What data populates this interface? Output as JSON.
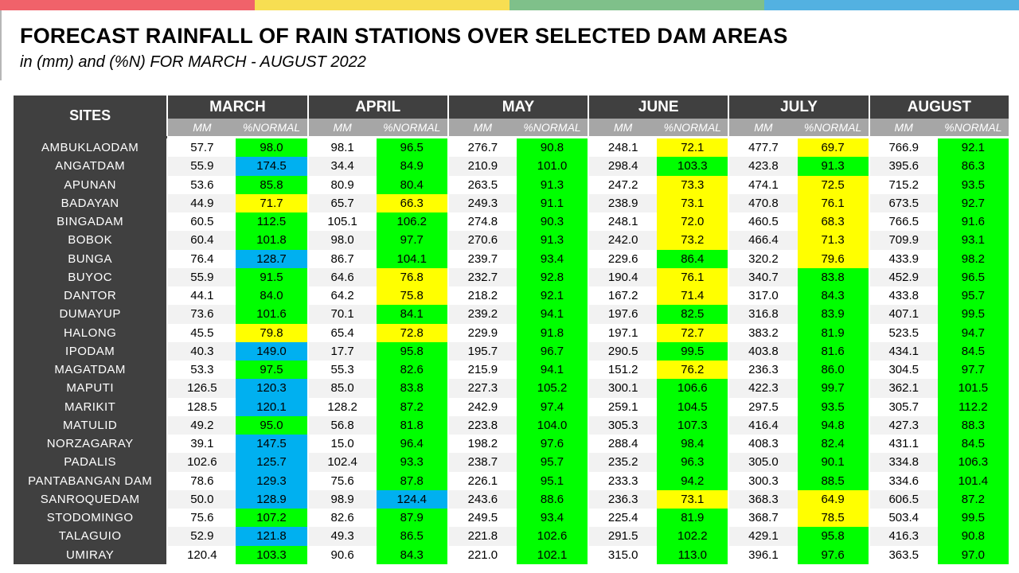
{
  "colors": {
    "top_bar": [
      "#f0626a",
      "#f7de52",
      "#7fc08a",
      "#53b1e1"
    ],
    "header_bg": "#404040",
    "subheader_bg": "#a6a6a6",
    "green": "#00ff00",
    "yellow": "#ffff00",
    "blue": "#00b0f0"
  },
  "title": "FORECAST RAINFALL OF RAIN STATIONS OVER SELECTED DAM AREAS",
  "subtitle": "in (mm) and (%N) FOR MARCH - AUGUST 2022",
  "table": {
    "sites_header": "SITES",
    "months": [
      "MARCH",
      "APRIL",
      "MAY",
      "JUNE",
      "JULY",
      "AUGUST"
    ],
    "mm_label": "MM",
    "pct_label": "%NORMAL",
    "rows": [
      {
        "site": "AMBUKLAODAM",
        "values": [
          [
            "57.7",
            "98.0",
            "g"
          ],
          [
            "98.1",
            "96.5",
            "g"
          ],
          [
            "276.7",
            "90.8",
            "g"
          ],
          [
            "248.1",
            "72.1",
            "y"
          ],
          [
            "477.7",
            "69.7",
            "y"
          ],
          [
            "766.9",
            "92.1",
            "g"
          ]
        ]
      },
      {
        "site": "ANGATDAM",
        "values": [
          [
            "55.9",
            "174.5",
            "b"
          ],
          [
            "34.4",
            "84.9",
            "g"
          ],
          [
            "210.9",
            "101.0",
            "g"
          ],
          [
            "298.4",
            "103.3",
            "g"
          ],
          [
            "423.8",
            "91.3",
            "g"
          ],
          [
            "395.6",
            "86.3",
            "g"
          ]
        ]
      },
      {
        "site": "APUNAN",
        "values": [
          [
            "53.6",
            "85.8",
            "g"
          ],
          [
            "80.9",
            "80.4",
            "g"
          ],
          [
            "263.5",
            "91.3",
            "g"
          ],
          [
            "247.2",
            "73.3",
            "y"
          ],
          [
            "474.1",
            "72.5",
            "y"
          ],
          [
            "715.2",
            "93.5",
            "g"
          ]
        ]
      },
      {
        "site": "BADAYAN",
        "values": [
          [
            "44.9",
            "71.7",
            "y"
          ],
          [
            "65.7",
            "66.3",
            "y"
          ],
          [
            "249.3",
            "91.1",
            "g"
          ],
          [
            "238.9",
            "73.1",
            "y"
          ],
          [
            "470.8",
            "76.1",
            "y"
          ],
          [
            "673.5",
            "92.7",
            "g"
          ]
        ]
      },
      {
        "site": "BINGADAM",
        "values": [
          [
            "60.5",
            "112.5",
            "g"
          ],
          [
            "105.1",
            "106.2",
            "g"
          ],
          [
            "274.8",
            "90.3",
            "g"
          ],
          [
            "248.1",
            "72.0",
            "y"
          ],
          [
            "460.5",
            "68.3",
            "y"
          ],
          [
            "766.5",
            "91.6",
            "g"
          ]
        ]
      },
      {
        "site": "BOBOK",
        "values": [
          [
            "60.4",
            "101.8",
            "g"
          ],
          [
            "98.0",
            "97.7",
            "g"
          ],
          [
            "270.6",
            "91.3",
            "g"
          ],
          [
            "242.0",
            "73.2",
            "y"
          ],
          [
            "466.4",
            "71.3",
            "y"
          ],
          [
            "709.9",
            "93.1",
            "g"
          ]
        ]
      },
      {
        "site": "BUNGA",
        "values": [
          [
            "76.4",
            "128.7",
            "b"
          ],
          [
            "86.7",
            "104.1",
            "g"
          ],
          [
            "239.7",
            "93.4",
            "g"
          ],
          [
            "229.6",
            "86.4",
            "g"
          ],
          [
            "320.2",
            "79.6",
            "y"
          ],
          [
            "433.9",
            "98.2",
            "g"
          ]
        ]
      },
      {
        "site": "BUYOC",
        "values": [
          [
            "55.9",
            "91.5",
            "g"
          ],
          [
            "64.6",
            "76.8",
            "y"
          ],
          [
            "232.7",
            "92.8",
            "g"
          ],
          [
            "190.4",
            "76.1",
            "y"
          ],
          [
            "340.7",
            "83.8",
            "g"
          ],
          [
            "452.9",
            "96.5",
            "g"
          ]
        ]
      },
      {
        "site": "DANTOR",
        "values": [
          [
            "44.1",
            "84.0",
            "g"
          ],
          [
            "64.2",
            "75.8",
            "y"
          ],
          [
            "218.2",
            "92.1",
            "g"
          ],
          [
            "167.2",
            "71.4",
            "y"
          ],
          [
            "317.0",
            "84.3",
            "g"
          ],
          [
            "433.8",
            "95.7",
            "g"
          ]
        ]
      },
      {
        "site": "DUMAYUP",
        "values": [
          [
            "73.6",
            "101.6",
            "g"
          ],
          [
            "70.1",
            "84.1",
            "g"
          ],
          [
            "239.2",
            "94.1",
            "g"
          ],
          [
            "197.6",
            "82.5",
            "g"
          ],
          [
            "316.8",
            "83.9",
            "g"
          ],
          [
            "407.1",
            "99.5",
            "g"
          ]
        ]
      },
      {
        "site": "HALONG",
        "values": [
          [
            "45.5",
            "79.8",
            "y"
          ],
          [
            "65.4",
            "72.8",
            "y"
          ],
          [
            "229.9",
            "91.8",
            "g"
          ],
          [
            "197.1",
            "72.7",
            "y"
          ],
          [
            "383.2",
            "81.9",
            "g"
          ],
          [
            "523.5",
            "94.7",
            "g"
          ]
        ]
      },
      {
        "site": "IPODAM",
        "values": [
          [
            "40.3",
            "149.0",
            "b"
          ],
          [
            "17.7",
            "95.8",
            "g"
          ],
          [
            "195.7",
            "96.7",
            "g"
          ],
          [
            "290.5",
            "99.5",
            "g"
          ],
          [
            "403.8",
            "81.6",
            "g"
          ],
          [
            "434.1",
            "84.5",
            "g"
          ]
        ]
      },
      {
        "site": "MAGATDAM",
        "values": [
          [
            "53.3",
            "97.5",
            "g"
          ],
          [
            "55.3",
            "82.6",
            "g"
          ],
          [
            "215.9",
            "94.1",
            "g"
          ],
          [
            "151.2",
            "76.2",
            "y"
          ],
          [
            "236.3",
            "86.0",
            "g"
          ],
          [
            "304.5",
            "97.7",
            "g"
          ]
        ]
      },
      {
        "site": "MAPUTI",
        "values": [
          [
            "126.5",
            "120.3",
            "b"
          ],
          [
            "85.0",
            "83.8",
            "g"
          ],
          [
            "227.3",
            "105.2",
            "g"
          ],
          [
            "300.1",
            "106.6",
            "g"
          ],
          [
            "422.3",
            "99.7",
            "g"
          ],
          [
            "362.1",
            "101.5",
            "g"
          ]
        ]
      },
      {
        "site": "MARIKIT",
        "values": [
          [
            "128.5",
            "120.1",
            "b"
          ],
          [
            "128.2",
            "87.2",
            "g"
          ],
          [
            "242.9",
            "97.4",
            "g"
          ],
          [
            "259.1",
            "104.5",
            "g"
          ],
          [
            "297.5",
            "93.5",
            "g"
          ],
          [
            "305.7",
            "112.2",
            "g"
          ]
        ]
      },
      {
        "site": "MATULID",
        "values": [
          [
            "49.2",
            "95.0",
            "g"
          ],
          [
            "56.8",
            "81.8",
            "g"
          ],
          [
            "223.8",
            "104.0",
            "g"
          ],
          [
            "305.3",
            "107.3",
            "g"
          ],
          [
            "416.4",
            "94.8",
            "g"
          ],
          [
            "427.3",
            "88.3",
            "g"
          ]
        ]
      },
      {
        "site": "NORZAGARAY",
        "values": [
          [
            "39.1",
            "147.5",
            "b"
          ],
          [
            "15.0",
            "96.4",
            "g"
          ],
          [
            "198.2",
            "97.6",
            "g"
          ],
          [
            "288.4",
            "98.4",
            "g"
          ],
          [
            "408.3",
            "82.4",
            "g"
          ],
          [
            "431.1",
            "84.5",
            "g"
          ]
        ]
      },
      {
        "site": "PADALIS",
        "values": [
          [
            "102.6",
            "125.7",
            "b"
          ],
          [
            "102.4",
            "93.3",
            "g"
          ],
          [
            "238.7",
            "95.7",
            "g"
          ],
          [
            "235.2",
            "96.3",
            "g"
          ],
          [
            "305.0",
            "90.1",
            "g"
          ],
          [
            "334.8",
            "106.3",
            "g"
          ]
        ]
      },
      {
        "site": "PANTABANGAN DAM",
        "values": [
          [
            "78.6",
            "129.3",
            "b"
          ],
          [
            "75.6",
            "87.8",
            "g"
          ],
          [
            "226.1",
            "95.1",
            "g"
          ],
          [
            "233.3",
            "94.2",
            "g"
          ],
          [
            "300.3",
            "88.5",
            "g"
          ],
          [
            "334.6",
            "101.4",
            "g"
          ]
        ]
      },
      {
        "site": "SANROQUEDAM",
        "values": [
          [
            "50.0",
            "128.9",
            "b"
          ],
          [
            "98.9",
            "124.4",
            "b"
          ],
          [
            "243.6",
            "88.6",
            "g"
          ],
          [
            "236.3",
            "73.1",
            "y"
          ],
          [
            "368.3",
            "64.9",
            "y"
          ],
          [
            "606.5",
            "87.2",
            "g"
          ]
        ]
      },
      {
        "site": "STODOMINGO",
        "values": [
          [
            "75.6",
            "107.2",
            "g"
          ],
          [
            "82.6",
            "87.9",
            "g"
          ],
          [
            "249.5",
            "93.4",
            "g"
          ],
          [
            "225.4",
            "81.9",
            "g"
          ],
          [
            "368.7",
            "78.5",
            "y"
          ],
          [
            "503.4",
            "99.5",
            "g"
          ]
        ]
      },
      {
        "site": "TALAGUIO",
        "values": [
          [
            "52.9",
            "121.8",
            "b"
          ],
          [
            "49.3",
            "86.5",
            "g"
          ],
          [
            "221.8",
            "102.6",
            "g"
          ],
          [
            "291.5",
            "102.2",
            "g"
          ],
          [
            "429.1",
            "95.8",
            "g"
          ],
          [
            "416.3",
            "90.8",
            "g"
          ]
        ]
      },
      {
        "site": "UMIRAY",
        "values": [
          [
            "120.4",
            "103.3",
            "g"
          ],
          [
            "90.6",
            "84.3",
            "g"
          ],
          [
            "221.0",
            "102.1",
            "g"
          ],
          [
            "315.0",
            "113.0",
            "g"
          ],
          [
            "396.1",
            "97.6",
            "g"
          ],
          [
            "363.5",
            "97.0",
            "g"
          ]
        ]
      }
    ]
  }
}
